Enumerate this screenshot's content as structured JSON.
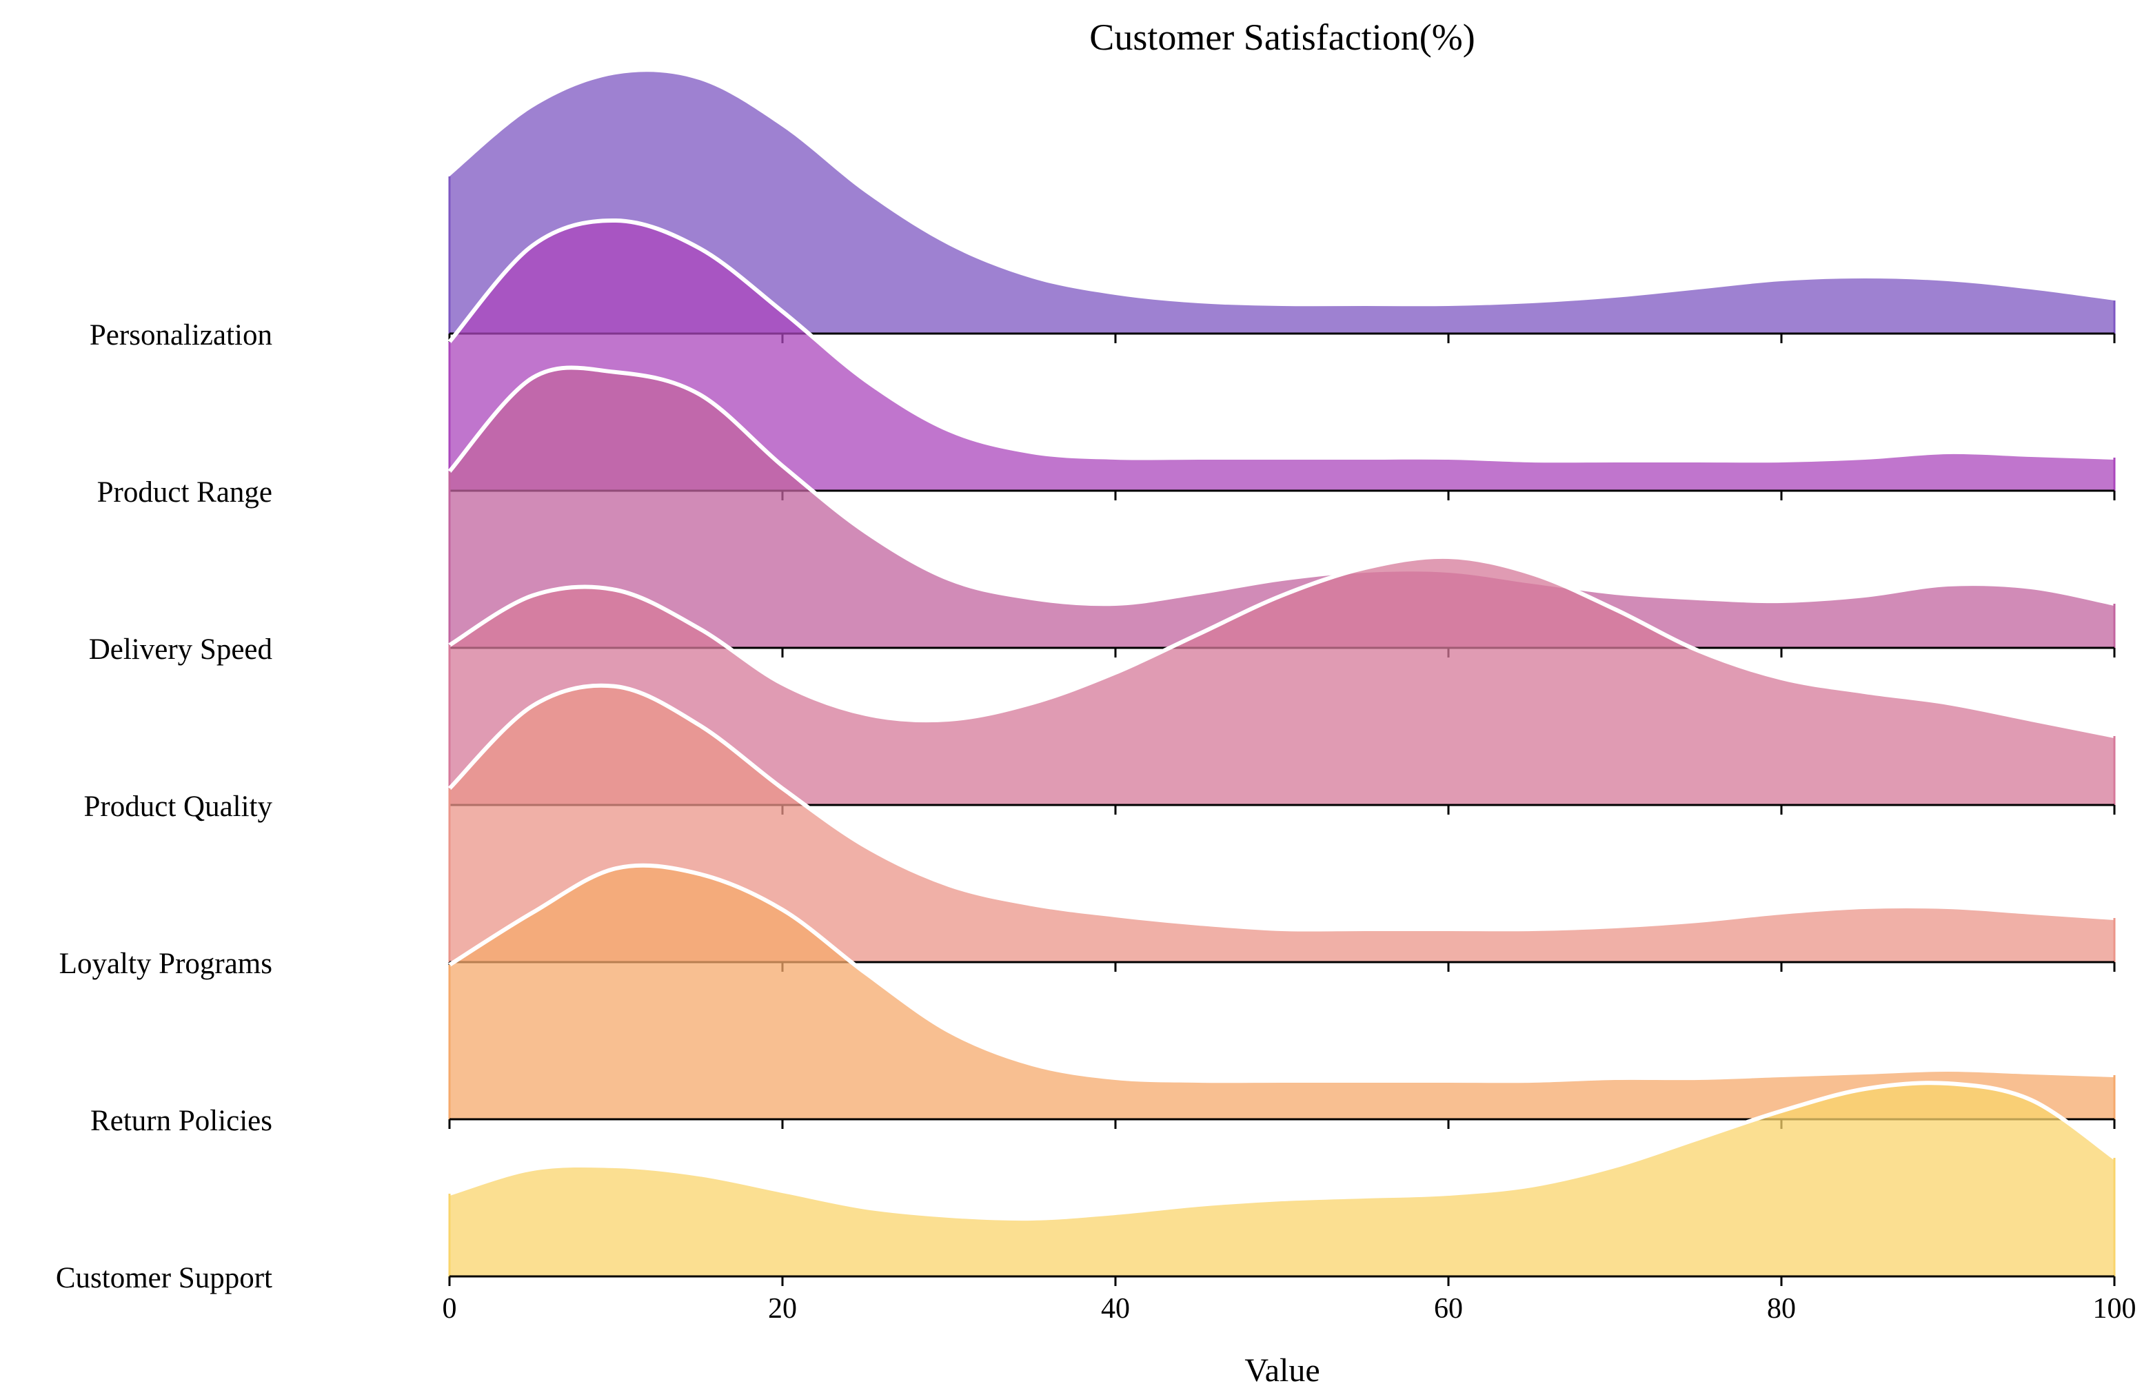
{
  "chart_data": {
    "type": "area",
    "title": "Customer Satisfaction(%)",
    "xlabel": "Value",
    "ylabel": "",
    "xlim": [
      0,
      100
    ],
    "x_ticks": [
      "0",
      "20",
      "40",
      "60",
      "80",
      "100"
    ],
    "grid": false,
    "legend": "none",
    "x": [
      0,
      5,
      10,
      15,
      20,
      25,
      30,
      35,
      40,
      45,
      50,
      55,
      60,
      65,
      70,
      75,
      80,
      85,
      90,
      95,
      100
    ],
    "series": [
      {
        "name": "Personalization",
        "color": "#7e57c2",
        "values": [
          0.57,
          0.82,
          0.94,
          0.92,
          0.75,
          0.51,
          0.32,
          0.2,
          0.14,
          0.11,
          0.1,
          0.1,
          0.1,
          0.11,
          0.13,
          0.16,
          0.19,
          0.2,
          0.19,
          0.16,
          0.12
        ]
      },
      {
        "name": "Product Range",
        "color": "#ab47bc",
        "values": [
          0.54,
          0.89,
          0.98,
          0.88,
          0.65,
          0.4,
          0.22,
          0.14,
          0.12,
          0.12,
          0.12,
          0.12,
          0.12,
          0.11,
          0.11,
          0.11,
          0.11,
          0.12,
          0.14,
          0.13,
          0.12
        ]
      },
      {
        "name": "Delivery Speed",
        "color": "#c2649f",
        "values": [
          0.64,
          0.98,
          1.0,
          0.92,
          0.66,
          0.42,
          0.25,
          0.18,
          0.16,
          0.2,
          0.25,
          0.28,
          0.28,
          0.24,
          0.2,
          0.18,
          0.17,
          0.19,
          0.23,
          0.22,
          0.16
        ]
      },
      {
        "name": "Product Quality",
        "color": "#d6799a",
        "values": [
          0.58,
          0.76,
          0.78,
          0.64,
          0.44,
          0.33,
          0.31,
          0.37,
          0.48,
          0.62,
          0.76,
          0.86,
          0.9,
          0.84,
          0.71,
          0.56,
          0.46,
          0.41,
          0.37,
          0.31,
          0.25
        ]
      },
      {
        "name": "Loyalty Programs",
        "color": "#eb958a",
        "values": [
          0.63,
          0.93,
          1.0,
          0.86,
          0.63,
          0.42,
          0.28,
          0.21,
          0.17,
          0.14,
          0.12,
          0.12,
          0.12,
          0.12,
          0.13,
          0.15,
          0.18,
          0.2,
          0.2,
          0.18,
          0.16
        ]
      },
      {
        "name": "Return Policies",
        "color": "#f5a96c",
        "values": [
          0.56,
          0.75,
          0.91,
          0.89,
          0.76,
          0.53,
          0.32,
          0.2,
          0.15,
          0.14,
          0.14,
          0.14,
          0.14,
          0.14,
          0.15,
          0.15,
          0.16,
          0.17,
          0.18,
          0.17,
          0.16
        ]
      },
      {
        "name": "Customer Support",
        "color": "#f9d46c",
        "values": [
          0.3,
          0.39,
          0.4,
          0.37,
          0.31,
          0.25,
          0.22,
          0.21,
          0.23,
          0.26,
          0.28,
          0.29,
          0.3,
          0.33,
          0.4,
          0.5,
          0.6,
          0.68,
          0.7,
          0.64,
          0.43
        ]
      }
    ]
  }
}
